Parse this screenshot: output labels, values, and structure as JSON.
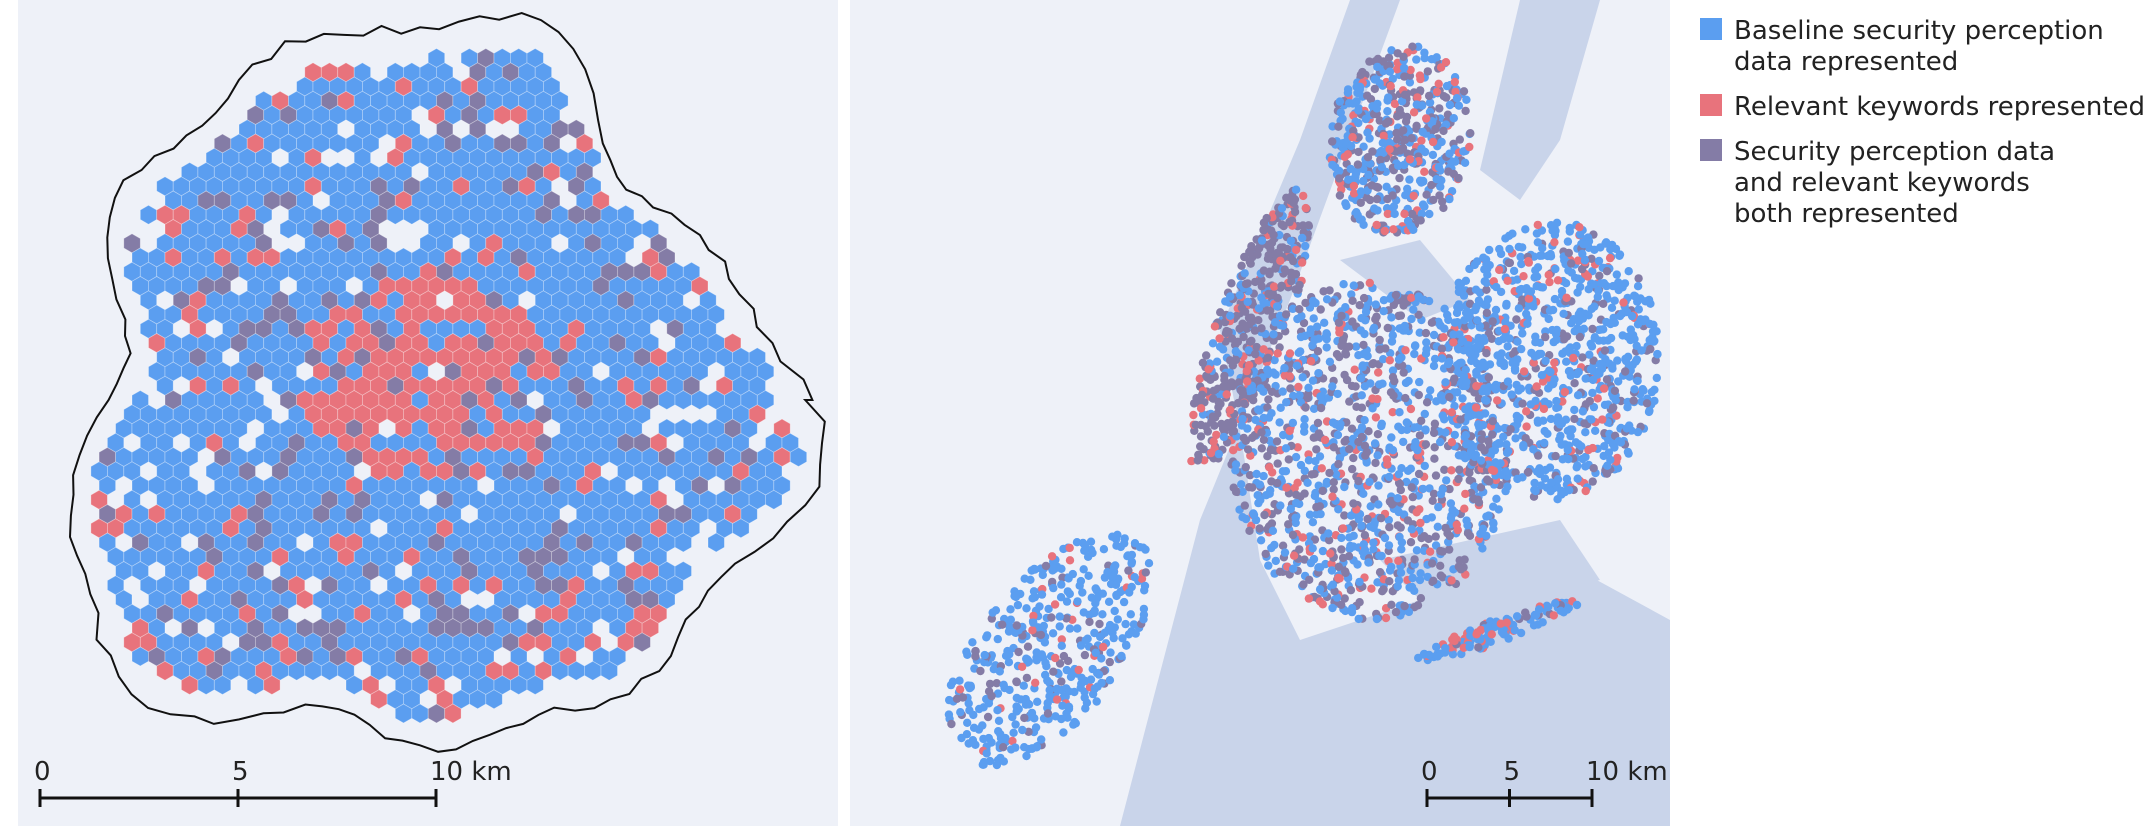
{
  "legend": [
    {
      "lines": [
        "Baseline security perception",
        "data represented"
      ],
      "color": "#5b9ef0"
    },
    {
      "lines": [
        "Relevant keywords represented"
      ],
      "color": "#e8737c"
    },
    {
      "lines": [
        "Security perception data",
        "and relevant keywords",
        "both represented"
      ],
      "color": "#847ca6"
    }
  ],
  "scale_bars": [
    {
      "ticks": [
        0,
        5,
        {
          "value": 10,
          "label": "10 km"
        }
      ]
    },
    {
      "ticks": [
        0,
        5,
        {
          "value": 10,
          "label": "10 km"
        }
      ]
    }
  ]
}
